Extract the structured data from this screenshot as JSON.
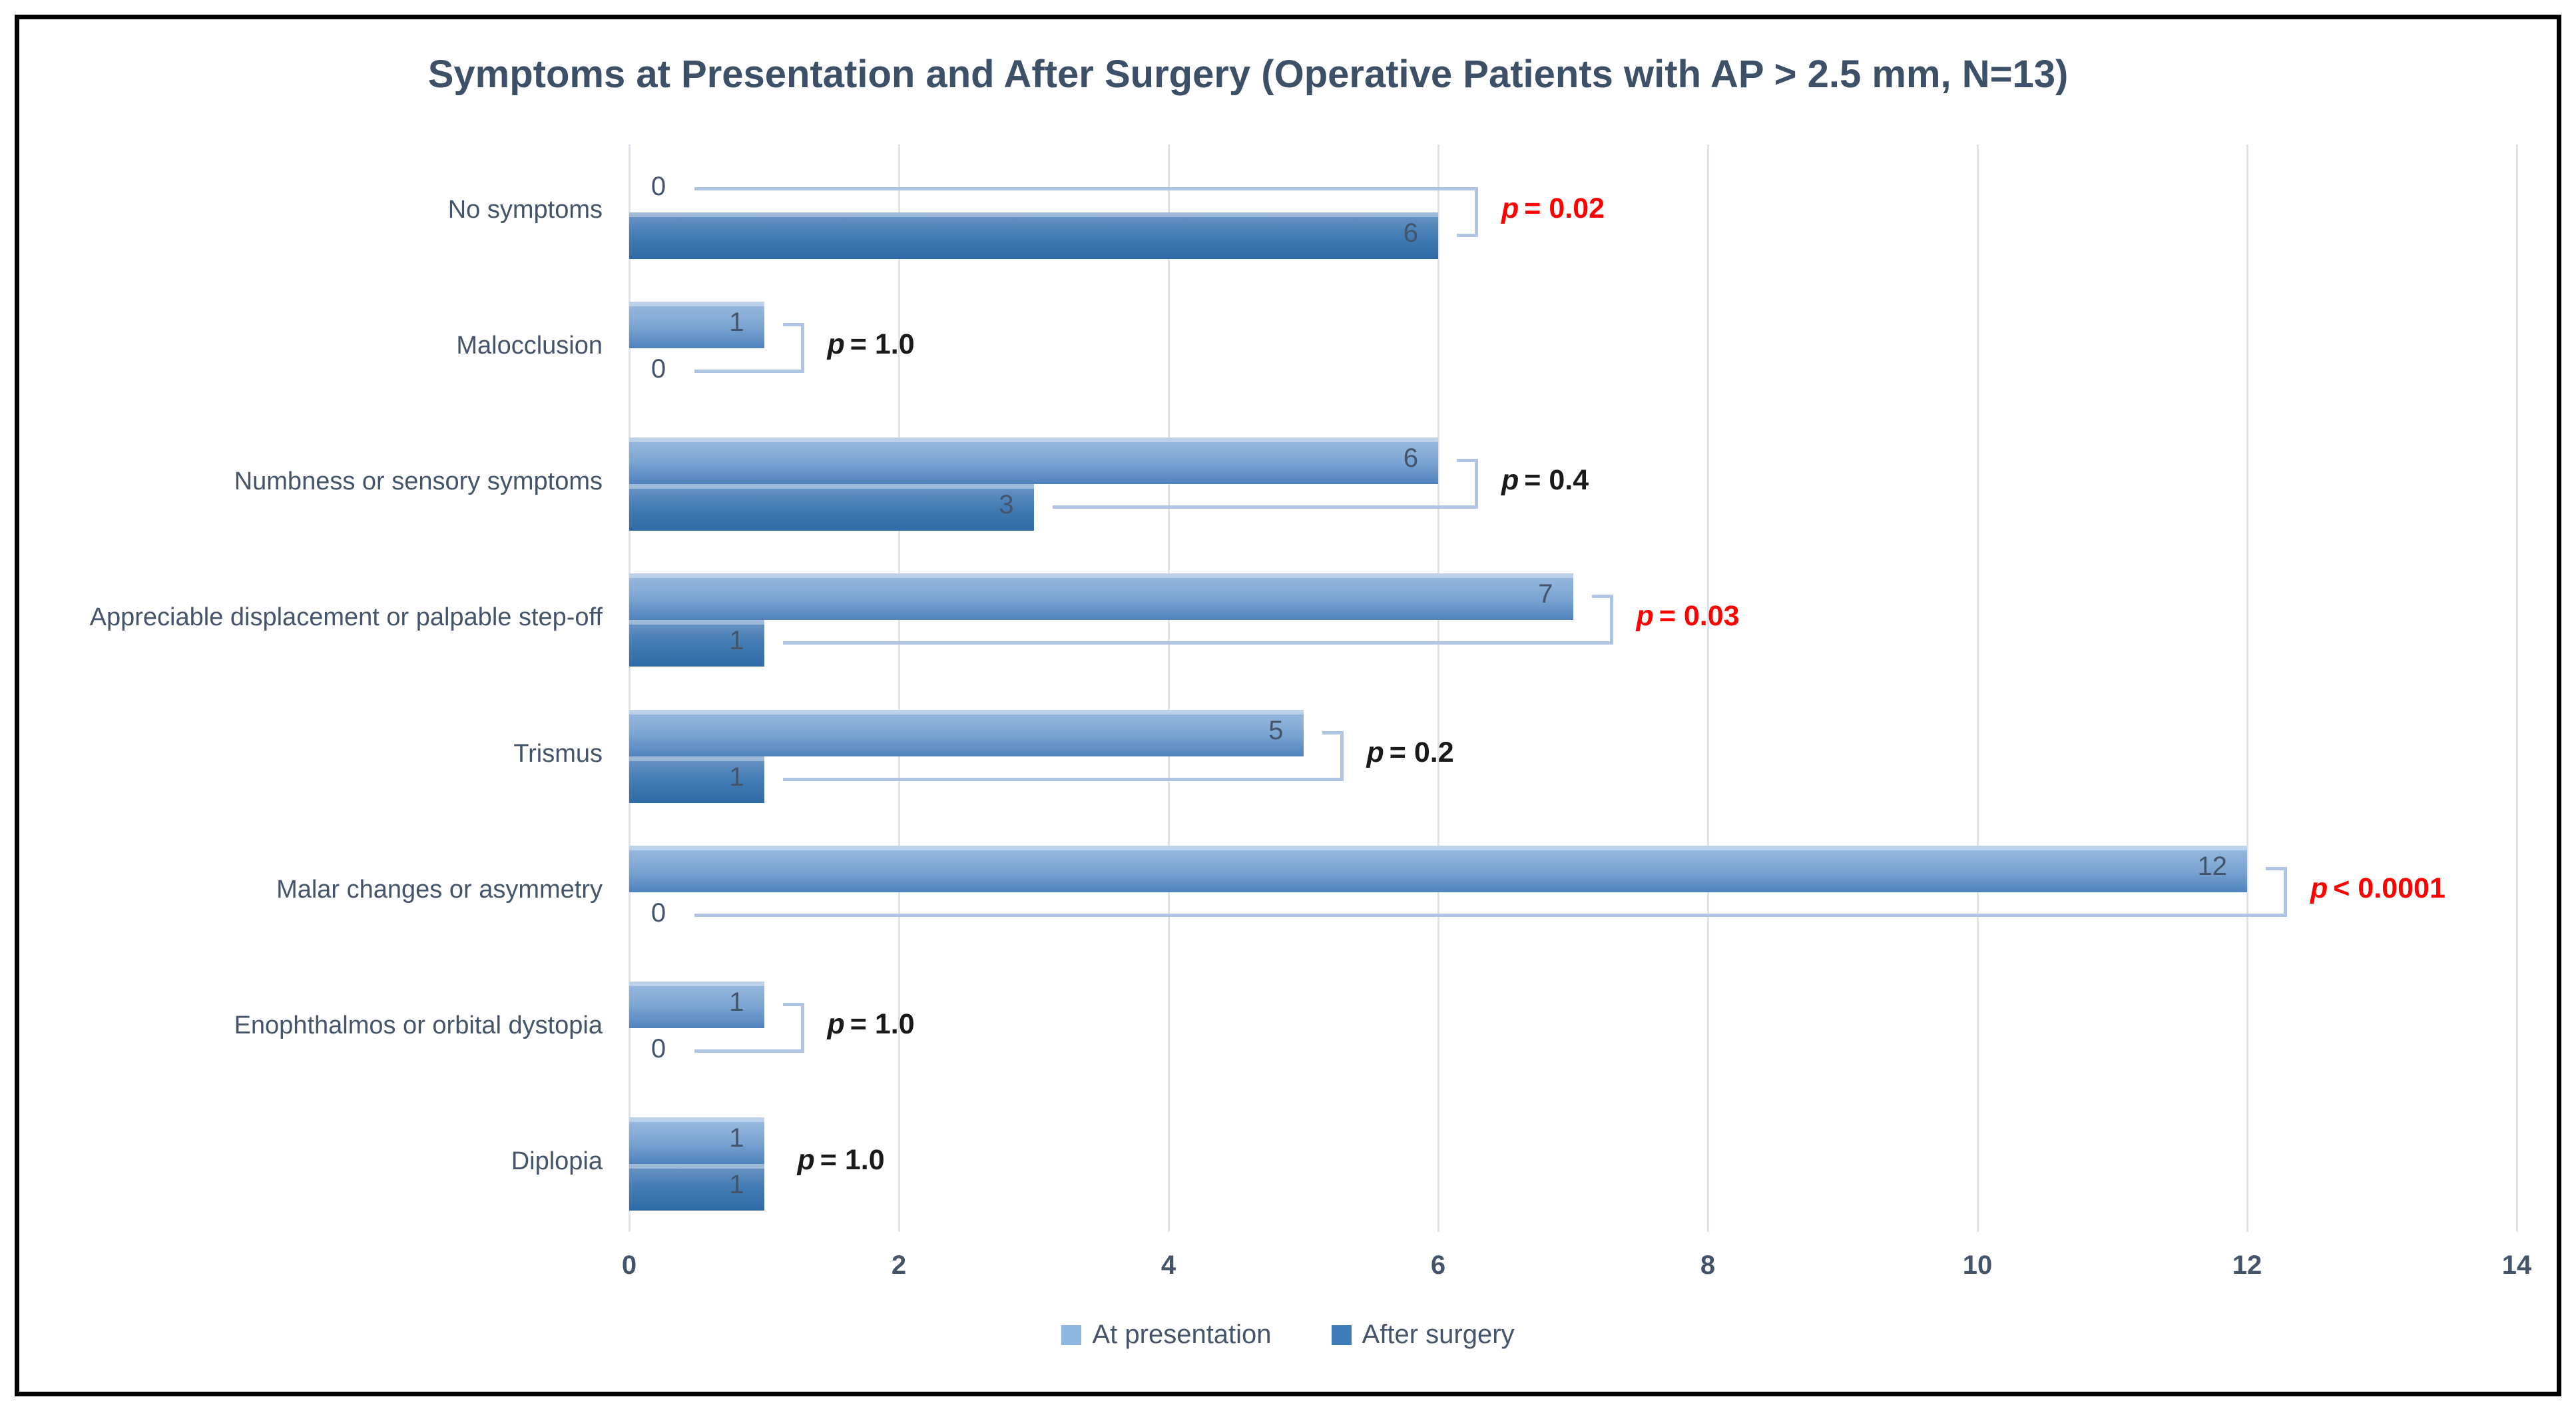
{
  "chart_data": {
    "type": "bar",
    "orientation": "horizontal",
    "title": "Symptoms at Presentation and After Surgery (Operative Patients with AP > 2.5 mm, N=13)",
    "categories": [
      "No symptoms",
      "Malocclusion",
      "Numbness or sensory symptoms",
      "Appreciable displacement or palpable step-off",
      "Trismus",
      "Malar changes or asymmetry",
      "Enophthalmos or orbital dystopia",
      "Diplopia"
    ],
    "series": [
      {
        "name": "At presentation",
        "values": [
          0,
          1,
          6,
          7,
          5,
          12,
          1,
          1
        ],
        "color": "#8fb6df"
      },
      {
        "name": "After surgery",
        "values": [
          6,
          0,
          3,
          1,
          1,
          0,
          0,
          1
        ],
        "color": "#3e7db9"
      }
    ],
    "p_values": [
      {
        "label": "p = 0.02",
        "significant": true,
        "bracket": true
      },
      {
        "label": "p = 1.0",
        "significant": false,
        "bracket": true
      },
      {
        "label": "p = 0.4",
        "significant": false,
        "bracket": true
      },
      {
        "label": "p = 0.03",
        "significant": true,
        "bracket": true
      },
      {
        "label": "p = 0.2",
        "significant": false,
        "bracket": true
      },
      {
        "label": "p < 0.0001",
        "significant": true,
        "bracket": true
      },
      {
        "label": "p = 1.0",
        "significant": false,
        "bracket": true
      },
      {
        "label": "p = 1.0",
        "significant": false,
        "bracket": false
      }
    ],
    "x_ticks": [
      0,
      2,
      4,
      6,
      8,
      10,
      12,
      14
    ],
    "xlim": [
      0,
      14
    ],
    "xlabel": "",
    "ylabel": "",
    "grid": "vertical-light",
    "legend_position": "bottom-center",
    "colors": {
      "significant_p": "#fe0000",
      "normal_p": "#1a1a1a",
      "axis_text": "#44546a",
      "title_text": "#3c5068",
      "bracket_line": "#b0c4e4",
      "gridline": "#dfe3ea"
    }
  }
}
